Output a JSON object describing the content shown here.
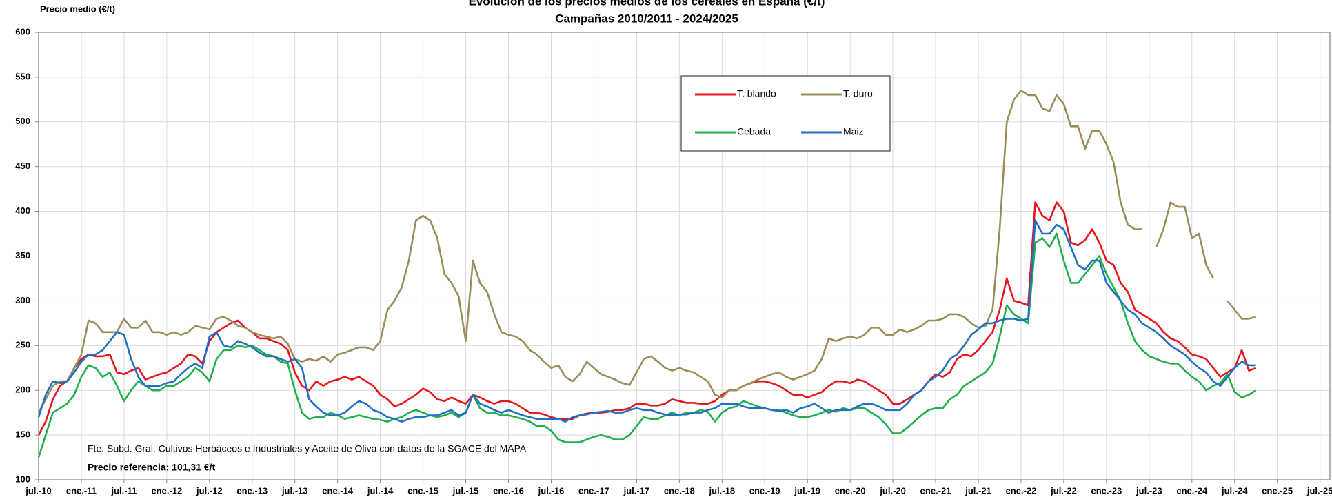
{
  "chart_data": {
    "type": "line",
    "title": "Evolución de los precios medios de los cereales en España (€/t)",
    "subtitle": "Campañas 2010/2011 - 2024/2025",
    "y_label": "Precio medio (€/t)",
    "annotations": [
      "Fte: Subd. Gral. Cultivos Herbáceos e Industriales y Aceite de Oliva con datos de la SGACE del MAPA",
      "Precio referencia: 101,31 €/t"
    ],
    "ylim": [
      100,
      600
    ],
    "yticks": [
      100,
      150,
      200,
      250,
      300,
      350,
      400,
      450,
      500,
      550,
      600
    ],
    "xlim": [
      "2010-07",
      "2025-08"
    ],
    "xticks": [
      {
        "value": "2010-07",
        "label": "jul.-10"
      },
      {
        "value": "2011-01",
        "label": "ene.-11"
      },
      {
        "value": "2011-07",
        "label": "jul.-11"
      },
      {
        "value": "2012-01",
        "label": "ene.-12"
      },
      {
        "value": "2012-07",
        "label": "jul.-12"
      },
      {
        "value": "2013-01",
        "label": "ene.-13"
      },
      {
        "value": "2013-07",
        "label": "jul.-13"
      },
      {
        "value": "2014-01",
        "label": "ene.-14"
      },
      {
        "value": "2014-07",
        "label": "jul.-14"
      },
      {
        "value": "2015-01",
        "label": "ene.-15"
      },
      {
        "value": "2015-07",
        "label": "jul.-15"
      },
      {
        "value": "2016-01",
        "label": "ene.-16"
      },
      {
        "value": "2016-07",
        "label": "jul.-16"
      },
      {
        "value": "2017-01",
        "label": "ene.-17"
      },
      {
        "value": "2017-07",
        "label": "jul.-17"
      },
      {
        "value": "2018-01",
        "label": "ene.-18"
      },
      {
        "value": "2018-07",
        "label": "jul.-18"
      },
      {
        "value": "2019-01",
        "label": "ene.-19"
      },
      {
        "value": "2019-07",
        "label": "jul.-19"
      },
      {
        "value": "2020-01",
        "label": "ene.-20"
      },
      {
        "value": "2020-07",
        "label": "jul.-20"
      },
      {
        "value": "2021-01",
        "label": "ene.-21"
      },
      {
        "value": "2021-07",
        "label": "jul.-21"
      },
      {
        "value": "2022-01",
        "label": "ene.-22"
      },
      {
        "value": "2022-07",
        "label": "jul.-22"
      },
      {
        "value": "2023-01",
        "label": "ene.-23"
      },
      {
        "value": "2023-07",
        "label": "jul.-23"
      },
      {
        "value": "2024-01",
        "label": "ene.-24"
      },
      {
        "value": "2024-07",
        "label": "jul.-24"
      },
      {
        "value": "2025-01",
        "label": "ene.-25"
      },
      {
        "value": "2025-07",
        "label": "jul.-25"
      }
    ],
    "grid": true,
    "x": [
      "2010-07",
      "2010-08",
      "2010-09",
      "2010-10",
      "2010-11",
      "2010-12",
      "2011-01",
      "2011-02",
      "2011-03",
      "2011-04",
      "2011-05",
      "2011-06",
      "2011-07",
      "2011-08",
      "2011-09",
      "2011-10",
      "2011-11",
      "2011-12",
      "2012-01",
      "2012-02",
      "2012-03",
      "2012-04",
      "2012-05",
      "2012-06",
      "2012-07",
      "2012-08",
      "2012-09",
      "2012-10",
      "2012-11",
      "2012-12",
      "2013-01",
      "2013-02",
      "2013-03",
      "2013-04",
      "2013-05",
      "2013-06",
      "2013-07",
      "2013-08",
      "2013-09",
      "2013-10",
      "2013-11",
      "2013-12",
      "2014-01",
      "2014-02",
      "2014-03",
      "2014-04",
      "2014-05",
      "2014-06",
      "2014-07",
      "2014-08",
      "2014-09",
      "2014-10",
      "2014-11",
      "2014-12",
      "2015-01",
      "2015-02",
      "2015-03",
      "2015-04",
      "2015-05",
      "2015-06",
      "2015-07",
      "2015-08",
      "2015-09",
      "2015-10",
      "2015-11",
      "2015-12",
      "2016-01",
      "2016-02",
      "2016-03",
      "2016-04",
      "2016-05",
      "2016-06",
      "2016-07",
      "2016-08",
      "2016-09",
      "2016-10",
      "2016-11",
      "2016-12",
      "2017-01",
      "2017-02",
      "2017-03",
      "2017-04",
      "2017-05",
      "2017-06",
      "2017-07",
      "2017-08",
      "2017-09",
      "2017-10",
      "2017-11",
      "2017-12",
      "2018-01",
      "2018-02",
      "2018-03",
      "2018-04",
      "2018-05",
      "2018-06",
      "2018-07",
      "2018-08",
      "2018-09",
      "2018-10",
      "2018-11",
      "2018-12",
      "2019-01",
      "2019-02",
      "2019-03",
      "2019-04",
      "2019-05",
      "2019-06",
      "2019-07",
      "2019-08",
      "2019-09",
      "2019-10",
      "2019-11",
      "2019-12",
      "2020-01",
      "2020-02",
      "2020-03",
      "2020-04",
      "2020-05",
      "2020-06",
      "2020-07",
      "2020-08",
      "2020-09",
      "2020-10",
      "2020-11",
      "2020-12",
      "2021-01",
      "2021-02",
      "2021-03",
      "2021-04",
      "2021-05",
      "2021-06",
      "2021-07",
      "2021-08",
      "2021-09",
      "2021-10",
      "2021-11",
      "2021-12",
      "2022-01",
      "2022-02",
      "2022-03",
      "2022-04",
      "2022-05",
      "2022-06",
      "2022-07",
      "2022-08",
      "2022-09",
      "2022-10",
      "2022-11",
      "2022-12",
      "2023-01",
      "2023-02",
      "2023-03",
      "2023-04",
      "2023-05",
      "2023-06",
      "2023-07",
      "2023-08",
      "2023-09",
      "2023-10",
      "2023-11",
      "2023-12",
      "2024-01",
      "2024-02",
      "2024-03",
      "2024-04",
      "2024-05",
      "2024-06",
      "2024-07",
      "2024-08",
      "2024-09",
      "2024-10"
    ],
    "series": [
      {
        "name": "T. blando",
        "color": "#e8141c",
        "values": [
          150,
          165,
          190,
          205,
          210,
          225,
          235,
          240,
          238,
          238,
          240,
          220,
          218,
          222,
          225,
          212,
          215,
          218,
          220,
          225,
          230,
          240,
          238,
          230,
          255,
          265,
          270,
          275,
          278,
          270,
          265,
          258,
          258,
          255,
          252,
          245,
          220,
          205,
          200,
          210,
          205,
          210,
          212,
          215,
          212,
          215,
          210,
          205,
          195,
          190,
          182,
          185,
          190,
          195,
          202,
          198,
          190,
          188,
          192,
          188,
          185,
          195,
          192,
          188,
          185,
          188,
          188,
          185,
          180,
          175,
          175,
          173,
          170,
          168,
          168,
          168,
          172,
          174,
          175,
          175,
          176,
          178,
          178,
          180,
          185,
          185,
          183,
          183,
          185,
          190,
          188,
          186,
          186,
          185,
          185,
          188,
          195,
          200,
          200,
          205,
          208,
          210,
          210,
          208,
          205,
          200,
          195,
          195,
          192,
          195,
          198,
          205,
          210,
          210,
          208,
          212,
          210,
          205,
          200,
          195,
          185,
          185,
          190,
          195,
          200,
          210,
          218,
          215,
          220,
          235,
          240,
          238,
          245,
          255,
          265,
          290,
          325,
          300,
          298,
          295,
          410,
          395,
          390,
          410,
          400,
          365,
          362,
          368,
          380,
          365,
          345,
          340,
          320,
          310,
          290,
          285,
          280,
          275,
          265,
          258,
          255,
          248,
          240,
          238,
          235,
          225,
          215,
          220,
          225,
          245,
          222,
          225
        ]
      },
      {
        "name": "T. duro",
        "color": "#9b8c5a",
        "values": [
          175,
          190,
          205,
          210,
          210,
          225,
          240,
          278,
          275,
          265,
          265,
          265,
          280,
          270,
          270,
          278,
          265,
          265,
          262,
          265,
          262,
          265,
          272,
          270,
          268,
          280,
          282,
          278,
          272,
          270,
          265,
          262,
          260,
          258,
          260,
          252,
          235,
          232,
          235,
          233,
          238,
          232,
          240,
          242,
          245,
          248,
          248,
          245,
          255,
          290,
          300,
          315,
          345,
          390,
          395,
          390,
          370,
          330,
          320,
          305,
          255,
          345,
          320,
          310,
          285,
          265,
          262,
          260,
          255,
          245,
          240,
          232,
          225,
          228,
          215,
          210,
          218,
          232,
          225,
          218,
          215,
          212,
          208,
          206,
          220,
          235,
          238,
          232,
          225,
          222,
          225,
          222,
          220,
          215,
          210,
          195,
          192,
          200,
          200,
          205,
          208,
          212,
          215,
          218,
          220,
          215,
          212,
          215,
          218,
          222,
          235,
          258,
          255,
          258,
          260,
          258,
          262,
          270,
          270,
          262,
          262,
          268,
          265,
          268,
          272,
          278,
          278,
          280,
          285,
          285,
          282,
          275,
          270,
          272,
          290,
          380,
          500,
          525,
          535,
          530,
          530,
          515,
          512,
          530,
          520,
          495,
          495,
          470,
          490,
          490,
          475,
          455,
          410,
          385,
          380,
          380,
          null,
          360,
          380,
          410,
          405,
          405,
          370,
          375,
          340,
          325,
          null,
          300,
          290,
          280,
          280,
          282
        ]
      },
      {
        "name": "Cebada",
        "color": "#1fb04b",
        "values": [
          125,
          150,
          175,
          180,
          185,
          195,
          215,
          228,
          225,
          215,
          220,
          205,
          188,
          200,
          210,
          205,
          200,
          200,
          205,
          205,
          210,
          215,
          225,
          220,
          210,
          235,
          245,
          245,
          250,
          248,
          250,
          245,
          240,
          238,
          232,
          230,
          200,
          175,
          168,
          170,
          170,
          175,
          172,
          168,
          170,
          172,
          170,
          168,
          167,
          165,
          168,
          170,
          175,
          178,
          175,
          172,
          170,
          172,
          175,
          170,
          175,
          195,
          180,
          175,
          175,
          172,
          172,
          170,
          168,
          165,
          160,
          160,
          155,
          145,
          142,
          142,
          142,
          145,
          148,
          150,
          148,
          145,
          145,
          150,
          160,
          170,
          168,
          168,
          172,
          175,
          172,
          175,
          175,
          178,
          176,
          165,
          175,
          180,
          182,
          188,
          185,
          182,
          180,
          178,
          178,
          175,
          172,
          170,
          170,
          172,
          175,
          178,
          176,
          180,
          178,
          180,
          180,
          175,
          170,
          162,
          152,
          152,
          158,
          165,
          172,
          178,
          180,
          180,
          190,
          195,
          205,
          210,
          215,
          220,
          230,
          260,
          295,
          285,
          280,
          275,
          365,
          370,
          360,
          375,
          345,
          320,
          320,
          330,
          340,
          350,
          330,
          315,
          300,
          275,
          255,
          245,
          238,
          235,
          232,
          230,
          230,
          222,
          215,
          210,
          200,
          205,
          208,
          218,
          198,
          192,
          195,
          200
        ]
      },
      {
        "name": "Maiz",
        "color": "#1f6fc2",
        "values": [
          170,
          195,
          210,
          208,
          210,
          220,
          232,
          240,
          240,
          245,
          255,
          265,
          262,
          235,
          215,
          205,
          205,
          205,
          208,
          210,
          218,
          225,
          230,
          225,
          260,
          265,
          250,
          248,
          255,
          252,
          248,
          242,
          238,
          238,
          235,
          232,
          235,
          225,
          190,
          182,
          175,
          172,
          172,
          175,
          182,
          188,
          185,
          178,
          175,
          170,
          168,
          165,
          168,
          170,
          170,
          172,
          172,
          175,
          178,
          172,
          175,
          195,
          185,
          182,
          178,
          175,
          178,
          175,
          172,
          170,
          168,
          168,
          168,
          168,
          165,
          170,
          172,
          173,
          175,
          176,
          177,
          175,
          175,
          178,
          180,
          178,
          178,
          175,
          173,
          172,
          173,
          173,
          175,
          175,
          178,
          180,
          185,
          185,
          185,
          182,
          180,
          180,
          180,
          178,
          177,
          178,
          175,
          180,
          182,
          185,
          180,
          175,
          178,
          178,
          178,
          182,
          185,
          185,
          182,
          178,
          178,
          178,
          185,
          195,
          200,
          210,
          215,
          222,
          235,
          240,
          250,
          262,
          268,
          275,
          275,
          278,
          280,
          280,
          278,
          280,
          390,
          375,
          375,
          385,
          380,
          360,
          340,
          335,
          345,
          345,
          320,
          310,
          300,
          290,
          285,
          275,
          270,
          265,
          258,
          250,
          245,
          240,
          232,
          225,
          220,
          210,
          205,
          215,
          225,
          232,
          228,
          228
        ]
      }
    ]
  }
}
